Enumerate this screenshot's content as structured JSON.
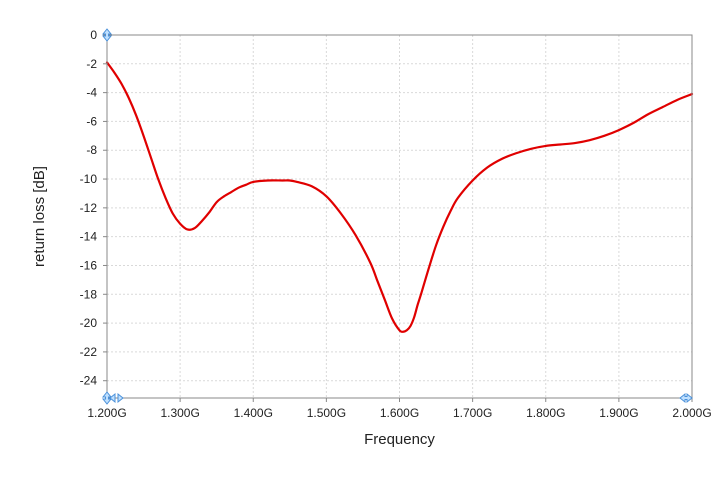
{
  "chart_data": {
    "type": "line",
    "title": "",
    "xlabel": "Frequency",
    "ylabel": "return loss [dB]",
    "xlim": [
      1.2,
      2.0
    ],
    "ylim": [
      -25.2,
      0
    ],
    "xticks": [
      1.2,
      1.3,
      1.4,
      1.5,
      1.6,
      1.7,
      1.8,
      1.9,
      2.0
    ],
    "xtick_labels": [
      "1.200G",
      "1.300G",
      "1.400G",
      "1.500G",
      "1.600G",
      "1.700G",
      "1.800G",
      "1.900G",
      "2.000G"
    ],
    "yticks": [
      0,
      -2,
      -4,
      -6,
      -8,
      -10,
      -12,
      -14,
      -16,
      -18,
      -20,
      -22,
      -24
    ],
    "ytick_labels": [
      "0",
      "-2",
      "-4",
      "-6",
      "-8",
      "-10",
      "-12",
      "-14",
      "-16",
      "-18",
      "-20",
      "-22",
      "-24"
    ],
    "grid": true,
    "colors": {
      "series": "#e00000",
      "grid": "#d9d9d9",
      "frame": "#888888",
      "marker": "#4a90d9"
    },
    "corner_markers": [
      "arrow-up-icon",
      "arrow-right-icon"
    ],
    "series": [
      {
        "x": [
          1.2,
          1.21,
          1.22,
          1.23,
          1.24,
          1.25,
          1.26,
          1.27,
          1.28,
          1.29,
          1.3,
          1.31,
          1.32,
          1.33,
          1.34,
          1.35,
          1.36,
          1.37,
          1.38,
          1.39,
          1.4,
          1.42,
          1.44,
          1.45,
          1.46,
          1.48,
          1.5,
          1.52,
          1.54,
          1.56,
          1.57,
          1.58,
          1.59,
          1.6,
          1.605,
          1.61,
          1.615,
          1.62,
          1.625,
          1.63,
          1.64,
          1.65,
          1.66,
          1.67,
          1.68,
          1.7,
          1.72,
          1.74,
          1.76,
          1.78,
          1.8,
          1.82,
          1.84,
          1.86,
          1.88,
          1.9,
          1.92,
          1.94,
          1.96,
          1.98,
          2.0
        ],
        "y": [
          -1.9,
          -2.6,
          -3.4,
          -4.4,
          -5.6,
          -7.0,
          -8.5,
          -10.0,
          -11.3,
          -12.4,
          -13.1,
          -13.5,
          -13.4,
          -12.9,
          -12.3,
          -11.6,
          -11.2,
          -10.9,
          -10.6,
          -10.4,
          -10.2,
          -10.1,
          -10.1,
          -10.1,
          -10.2,
          -10.5,
          -11.2,
          -12.4,
          -13.9,
          -15.8,
          -17.1,
          -18.4,
          -19.7,
          -20.5,
          -20.6,
          -20.5,
          -20.2,
          -19.6,
          -18.7,
          -17.9,
          -16.2,
          -14.6,
          -13.3,
          -12.2,
          -11.3,
          -10.1,
          -9.2,
          -8.6,
          -8.2,
          -7.9,
          -7.7,
          -7.6,
          -7.5,
          -7.3,
          -7.0,
          -6.6,
          -6.1,
          -5.5,
          -5.0,
          -4.5,
          -4.1
        ]
      }
    ]
  }
}
